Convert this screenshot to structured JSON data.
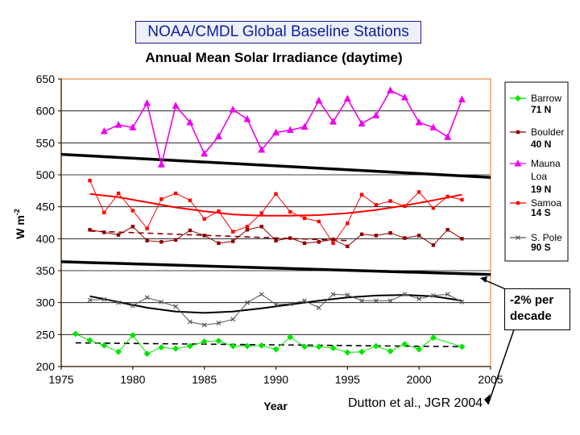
{
  "header": {
    "box_title": "NOAA/CMDL Global Baseline Stations"
  },
  "citation": "Dutton et al., JGR 2004",
  "callout": {
    "line1": "-2% per",
    "line2": "decade"
  },
  "chart_data": {
    "type": "line",
    "title": "Annual Mean Solar Irradiance (daytime)",
    "xlabel": "Year",
    "ylabel": "W m",
    "ylabel_superscript": "-2",
    "xlim": [
      1975,
      2005
    ],
    "ylim": [
      200,
      650
    ],
    "xticks": [
      1975,
      1980,
      1985,
      1990,
      1995,
      2000,
      2005
    ],
    "yticks": [
      200,
      250,
      300,
      350,
      400,
      450,
      500,
      550,
      600,
      650
    ],
    "grid": "horizontal",
    "legend_position": "right",
    "series": [
      {
        "name": "Barrow",
        "latitude": "71 N",
        "color": "#00e600",
        "marker": "diamond",
        "x": [
          1976,
          1977,
          1978,
          1979,
          1980,
          1981,
          1982,
          1983,
          1984,
          1985,
          1986,
          1987,
          1988,
          1989,
          1990,
          1991,
          1992,
          1993,
          1994,
          1995,
          1996,
          1997,
          1998,
          1999,
          2000,
          2001,
          2003
        ],
        "y": [
          251,
          241,
          233,
          223,
          249,
          220,
          230,
          228,
          232,
          239,
          240,
          232,
          232,
          233,
          227,
          246,
          231,
          231,
          229,
          222,
          223,
          232,
          224,
          235,
          227,
          245,
          231
        ],
        "trend": {
          "style": "dashed",
          "color": "#000000",
          "x": [
            1976,
            2003
          ],
          "y": [
            237,
            231
          ]
        }
      },
      {
        "name": "Boulder",
        "latitude": "40 N",
        "color": "#8b0000",
        "marker": "square",
        "x": [
          1977,
          1978,
          1979,
          1980,
          1981,
          1982,
          1983,
          1984,
          1985,
          1986,
          1987,
          1988,
          1989,
          1990,
          1991,
          1992,
          1993,
          1994,
          1995,
          1996,
          1997,
          1998,
          1999,
          2000,
          2001,
          2002,
          2003
        ],
        "y": [
          414,
          410,
          406,
          419,
          397,
          395,
          398,
          413,
          405,
          393,
          396,
          414,
          419,
          397,
          401,
          393,
          395,
          399,
          388,
          407,
          405,
          409,
          401,
          405,
          390,
          414,
          400
        ],
        "trend": {
          "style": "dashed",
          "color": "#8b0000",
          "x": [
            1977,
            1995
          ],
          "y": [
            412,
            397
          ]
        }
      },
      {
        "name": "Mauna Loa",
        "latitude": "19 N",
        "color": "#ee00ee",
        "marker": "triangle",
        "x": [
          1978,
          1979,
          1980,
          1981,
          1982,
          1983,
          1984,
          1985,
          1986,
          1987,
          1988,
          1989,
          1990,
          1991,
          1992,
          1993,
          1994,
          1995,
          1996,
          1997,
          1998,
          1999,
          2000,
          2001,
          2002,
          2003
        ],
        "y": [
          568,
          578,
          574,
          612,
          516,
          608,
          582,
          533,
          560,
          602,
          587,
          539,
          566,
          570,
          575,
          616,
          583,
          619,
          580,
          593,
          632,
          621,
          582,
          574,
          559,
          618
        ]
      },
      {
        "name": "Samoa",
        "latitude": "14 S",
        "color": "#ff0000",
        "marker": "square",
        "x": [
          1977,
          1978,
          1979,
          1980,
          1981,
          1982,
          1983,
          1984,
          1985,
          1986,
          1987,
          1988,
          1989,
          1990,
          1991,
          1992,
          1993,
          1994,
          1995,
          1996,
          1997,
          1998,
          1999,
          2000,
          2001,
          2002,
          2003
        ],
        "y": [
          491,
          441,
          471,
          444,
          416,
          462,
          471,
          460,
          431,
          443,
          411,
          419,
          440,
          470,
          442,
          432,
          427,
          393,
          424,
          469,
          453,
          459,
          451,
          473,
          448,
          466,
          461
        ],
        "trend": {
          "style": "solid",
          "color": "#ff0000",
          "x": [
            1977,
            1979,
            1981,
            1983,
            1985,
            1987,
            1989,
            1991,
            1993,
            1995,
            1997,
            1999,
            2001,
            2003
          ],
          "y": [
            470,
            465,
            457,
            449,
            443,
            438,
            436,
            436,
            437,
            440,
            445,
            452,
            460,
            469
          ]
        }
      },
      {
        "name": "S. Pole",
        "latitude": "90 S",
        "color": "#555555",
        "marker": "x",
        "x": [
          1977,
          1978,
          1979,
          1980,
          1981,
          1982,
          1983,
          1984,
          1985,
          1986,
          1987,
          1988,
          1989,
          1990,
          1991,
          1992,
          1993,
          1994,
          1995,
          1996,
          1997,
          1998,
          1999,
          2000,
          2001,
          2002,
          2003
        ],
        "y": [
          304,
          305,
          300,
          295,
          308,
          301,
          294,
          270,
          265,
          268,
          274,
          300,
          313,
          297,
          298,
          303,
          292,
          313,
          312,
          303,
          303,
          303,
          313,
          306,
          311,
          313,
          301
        ],
        "trend": {
          "style": "solid",
          "color": "#000000",
          "x": [
            1977,
            1979,
            1981,
            1983,
            1985,
            1987,
            1989,
            1991,
            1993,
            1995,
            1997,
            1999,
            2001,
            2003
          ],
          "y": [
            310,
            301,
            292,
            286,
            284,
            286,
            291,
            297,
            303,
            308,
            311,
            312,
            310,
            303
          ]
        }
      }
    ],
    "reference_lines": [
      {
        "label": "-2% per decade",
        "x": [
          1975,
          2005
        ],
        "y": [
          532,
          496
        ]
      },
      {
        "label": "-2% per decade",
        "x": [
          1975,
          2005
        ],
        "y": [
          364,
          344
        ]
      }
    ]
  }
}
